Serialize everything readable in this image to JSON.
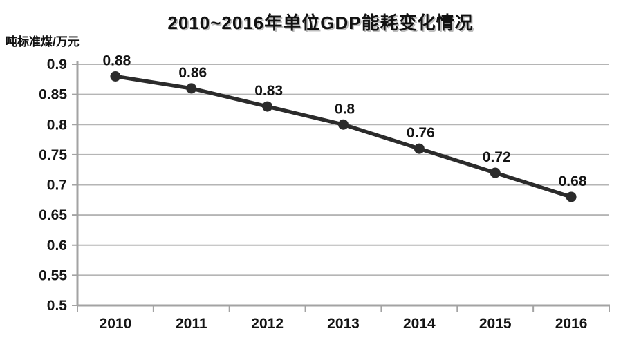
{
  "chart_data": {
    "type": "line",
    "title": "2010~2016年单位GDP能耗变化情况",
    "ylabel": "吨标准煤/万元",
    "xlabel": "",
    "categories": [
      "2010",
      "2011",
      "2012",
      "2013",
      "2014",
      "2015",
      "2016"
    ],
    "series": [
      {
        "name": "单位GDP能耗",
        "values": [
          0.88,
          0.86,
          0.83,
          0.8,
          0.76,
          0.72,
          0.68
        ],
        "point_labels": [
          "0.88",
          "0.86",
          "0.83",
          "0.8",
          "0.76",
          "0.72",
          "0.68"
        ]
      }
    ],
    "ylim": [
      0.5,
      0.9
    ],
    "ytick_step": 0.05,
    "ytick_labels": [
      "0.9",
      "0.85",
      "0.8",
      "0.75",
      "0.7",
      "0.65",
      "0.6",
      "0.55",
      "0.5"
    ],
    "grid": "horizontal",
    "legend": "none",
    "colors": {
      "line": "#2b2b2b",
      "marker": "#2b2b2b",
      "grid": "#b5b5b5",
      "axis": "#a3a3a3",
      "text": "#141414",
      "background": "#ffffff"
    }
  }
}
